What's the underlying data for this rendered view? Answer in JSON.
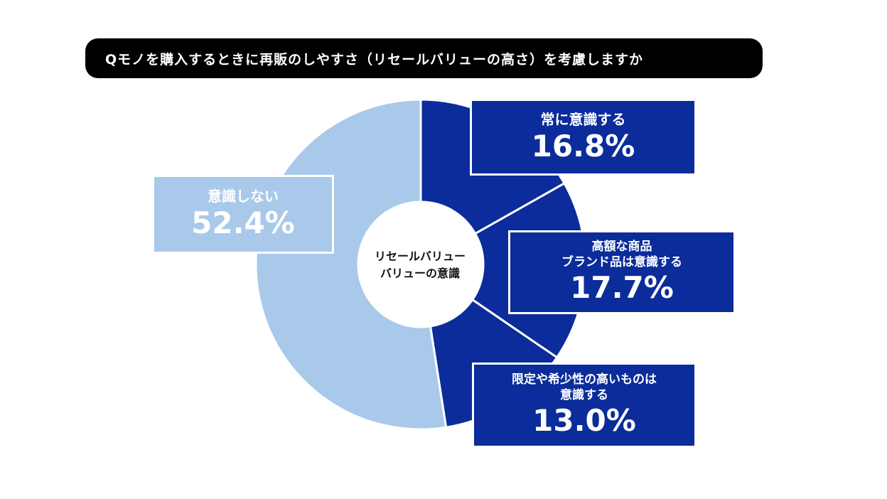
{
  "title": "Qモノを購入するときに再販のしやすさ（リセールバリューの高さ）を考慮しますか",
  "colors": {
    "aware": "#0b2c9a",
    "not_aware": "#a9c9ea",
    "title_bg": "#000000"
  },
  "center": {
    "line1": "リセールバリュー",
    "line2": "バリューの意識"
  },
  "chart_data": {
    "type": "pie",
    "title": "Qモノを購入するときに再販のしやすさ（リセールバリューの高さ）を考慮しますか",
    "center_label": "リセールバリュー バリューの意識",
    "slices": [
      {
        "label": "常に意識する",
        "value": 16.8,
        "display": "16.8%",
        "color": "#0b2c9a"
      },
      {
        "label": "高額な商品 ブランド品は意識する",
        "value": 17.7,
        "display": "17.7%",
        "color": "#0b2c9a"
      },
      {
        "label": "限定や希少性の高いものは 意識する",
        "value": 13.0,
        "display": "13.0%",
        "color": "#0b2c9a"
      },
      {
        "label": "意識しない",
        "value": 52.4,
        "display": "52.4%",
        "color": "#a9c9ea"
      }
    ]
  },
  "labels": {
    "always": {
      "line1": "常に意識する",
      "pct": "16.8%"
    },
    "expensive": {
      "line1": "高額な商品",
      "line2": "ブランド品は意識する",
      "pct": "17.7%"
    },
    "limited": {
      "line1": "限定や希少性の高いものは",
      "line2": "意識する",
      "pct": "13.0%"
    },
    "not_aware": {
      "line1": "意識しない",
      "pct": "52.4%"
    }
  }
}
